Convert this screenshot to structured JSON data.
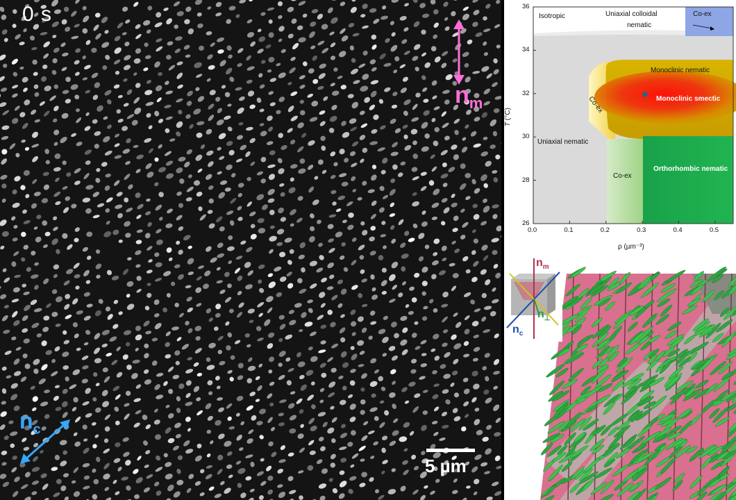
{
  "microscopy": {
    "time": "0 s",
    "director_m": {
      "letter": "n",
      "subscript": "m"
    },
    "director_c": {
      "letter": "n",
      "subscript": "c"
    },
    "scale_bar": "5 µm",
    "colors": {
      "director_m": "#ff6ed8",
      "director_c": "#33a8ff"
    }
  },
  "phase_diagram": {
    "xlabel": "ρ (µm⁻³)",
    "ylabel_symbol": "T",
    "ylabel_unit": "(°C)",
    "x_ticks": [
      "0.0",
      "0.1",
      "0.2",
      "0.3",
      "0.4",
      "0.5"
    ],
    "y_ticks": [
      "26",
      "28",
      "30",
      "32",
      "34",
      "36"
    ],
    "regions": {
      "isotropic": "Isotropic",
      "uniaxial_colloidal_nematic_line1": "Uniaxial colloidal",
      "uniaxial_colloidal_nematic_line2": "nematic",
      "coex_top": "Co-ex",
      "monoclinic_nematic": "Monoclinic nematic",
      "coex_diag": "Co-ex",
      "monoclinic_smectic": "Monoclinic smectic",
      "uniaxial_nematic": "Uniaxial  nematic",
      "coex_bottom": "Co-ex",
      "orthorhombic_nematic": "Orthorhombic nematic"
    },
    "colors": {
      "isotropic": "#ffffff",
      "uniaxial_nematic": "#dcdcdc",
      "coex_blue": "#8fa6e6",
      "monoclinic_nematic": "#c9a600",
      "monoclinic_smectic": "#e8141a",
      "coex_green": "#b8dfa4",
      "orthorhombic_nematic": "#1fae4c"
    }
  },
  "simulation": {
    "director_m": {
      "letter": "n",
      "subscript": "m"
    },
    "director_c": {
      "letter": "n",
      "subscript": "c"
    },
    "director_perp": {
      "letter": "n",
      "subscript": "⊥"
    },
    "colors": {
      "director_m": "#b0334a",
      "director_c": "#1f4fa8",
      "director_perp": "#2e9a3c",
      "background": "#d9708f",
      "rods": "#3fc24f"
    }
  }
}
